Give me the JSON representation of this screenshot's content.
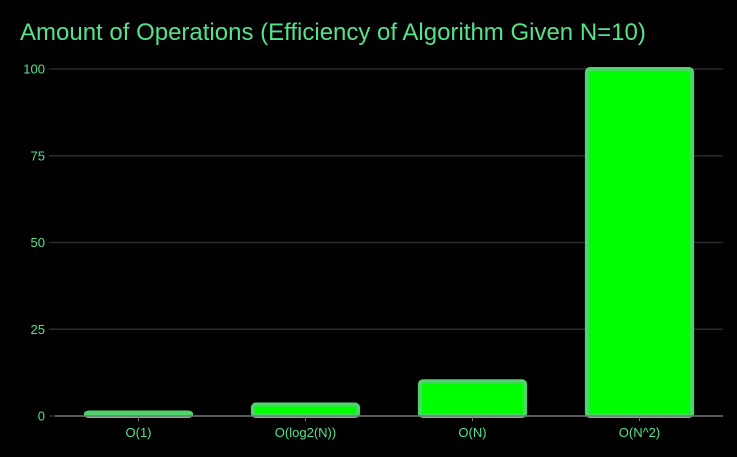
{
  "chart_data": {
    "type": "bar",
    "title": "Amount of Operations (Efficiency of Algorithm Given N=10)",
    "categories": [
      "O(1)",
      "O(log2(N))",
      "O(N)",
      "O(N^2)"
    ],
    "values": [
      1,
      3.32,
      10,
      100
    ],
    "xlabel": "",
    "ylabel": "",
    "ylim": [
      0,
      100
    ],
    "yticks": [
      0,
      25,
      50,
      75,
      100
    ],
    "grid": true,
    "legend": "none"
  },
  "colors": {
    "background": "#000000",
    "title": "#55e38a",
    "tick_label": "#55e38a",
    "bar_fill": "#00ff00",
    "bar_border": "#4ed46a",
    "grid": "#2b2b2b",
    "axis": "#777777"
  }
}
